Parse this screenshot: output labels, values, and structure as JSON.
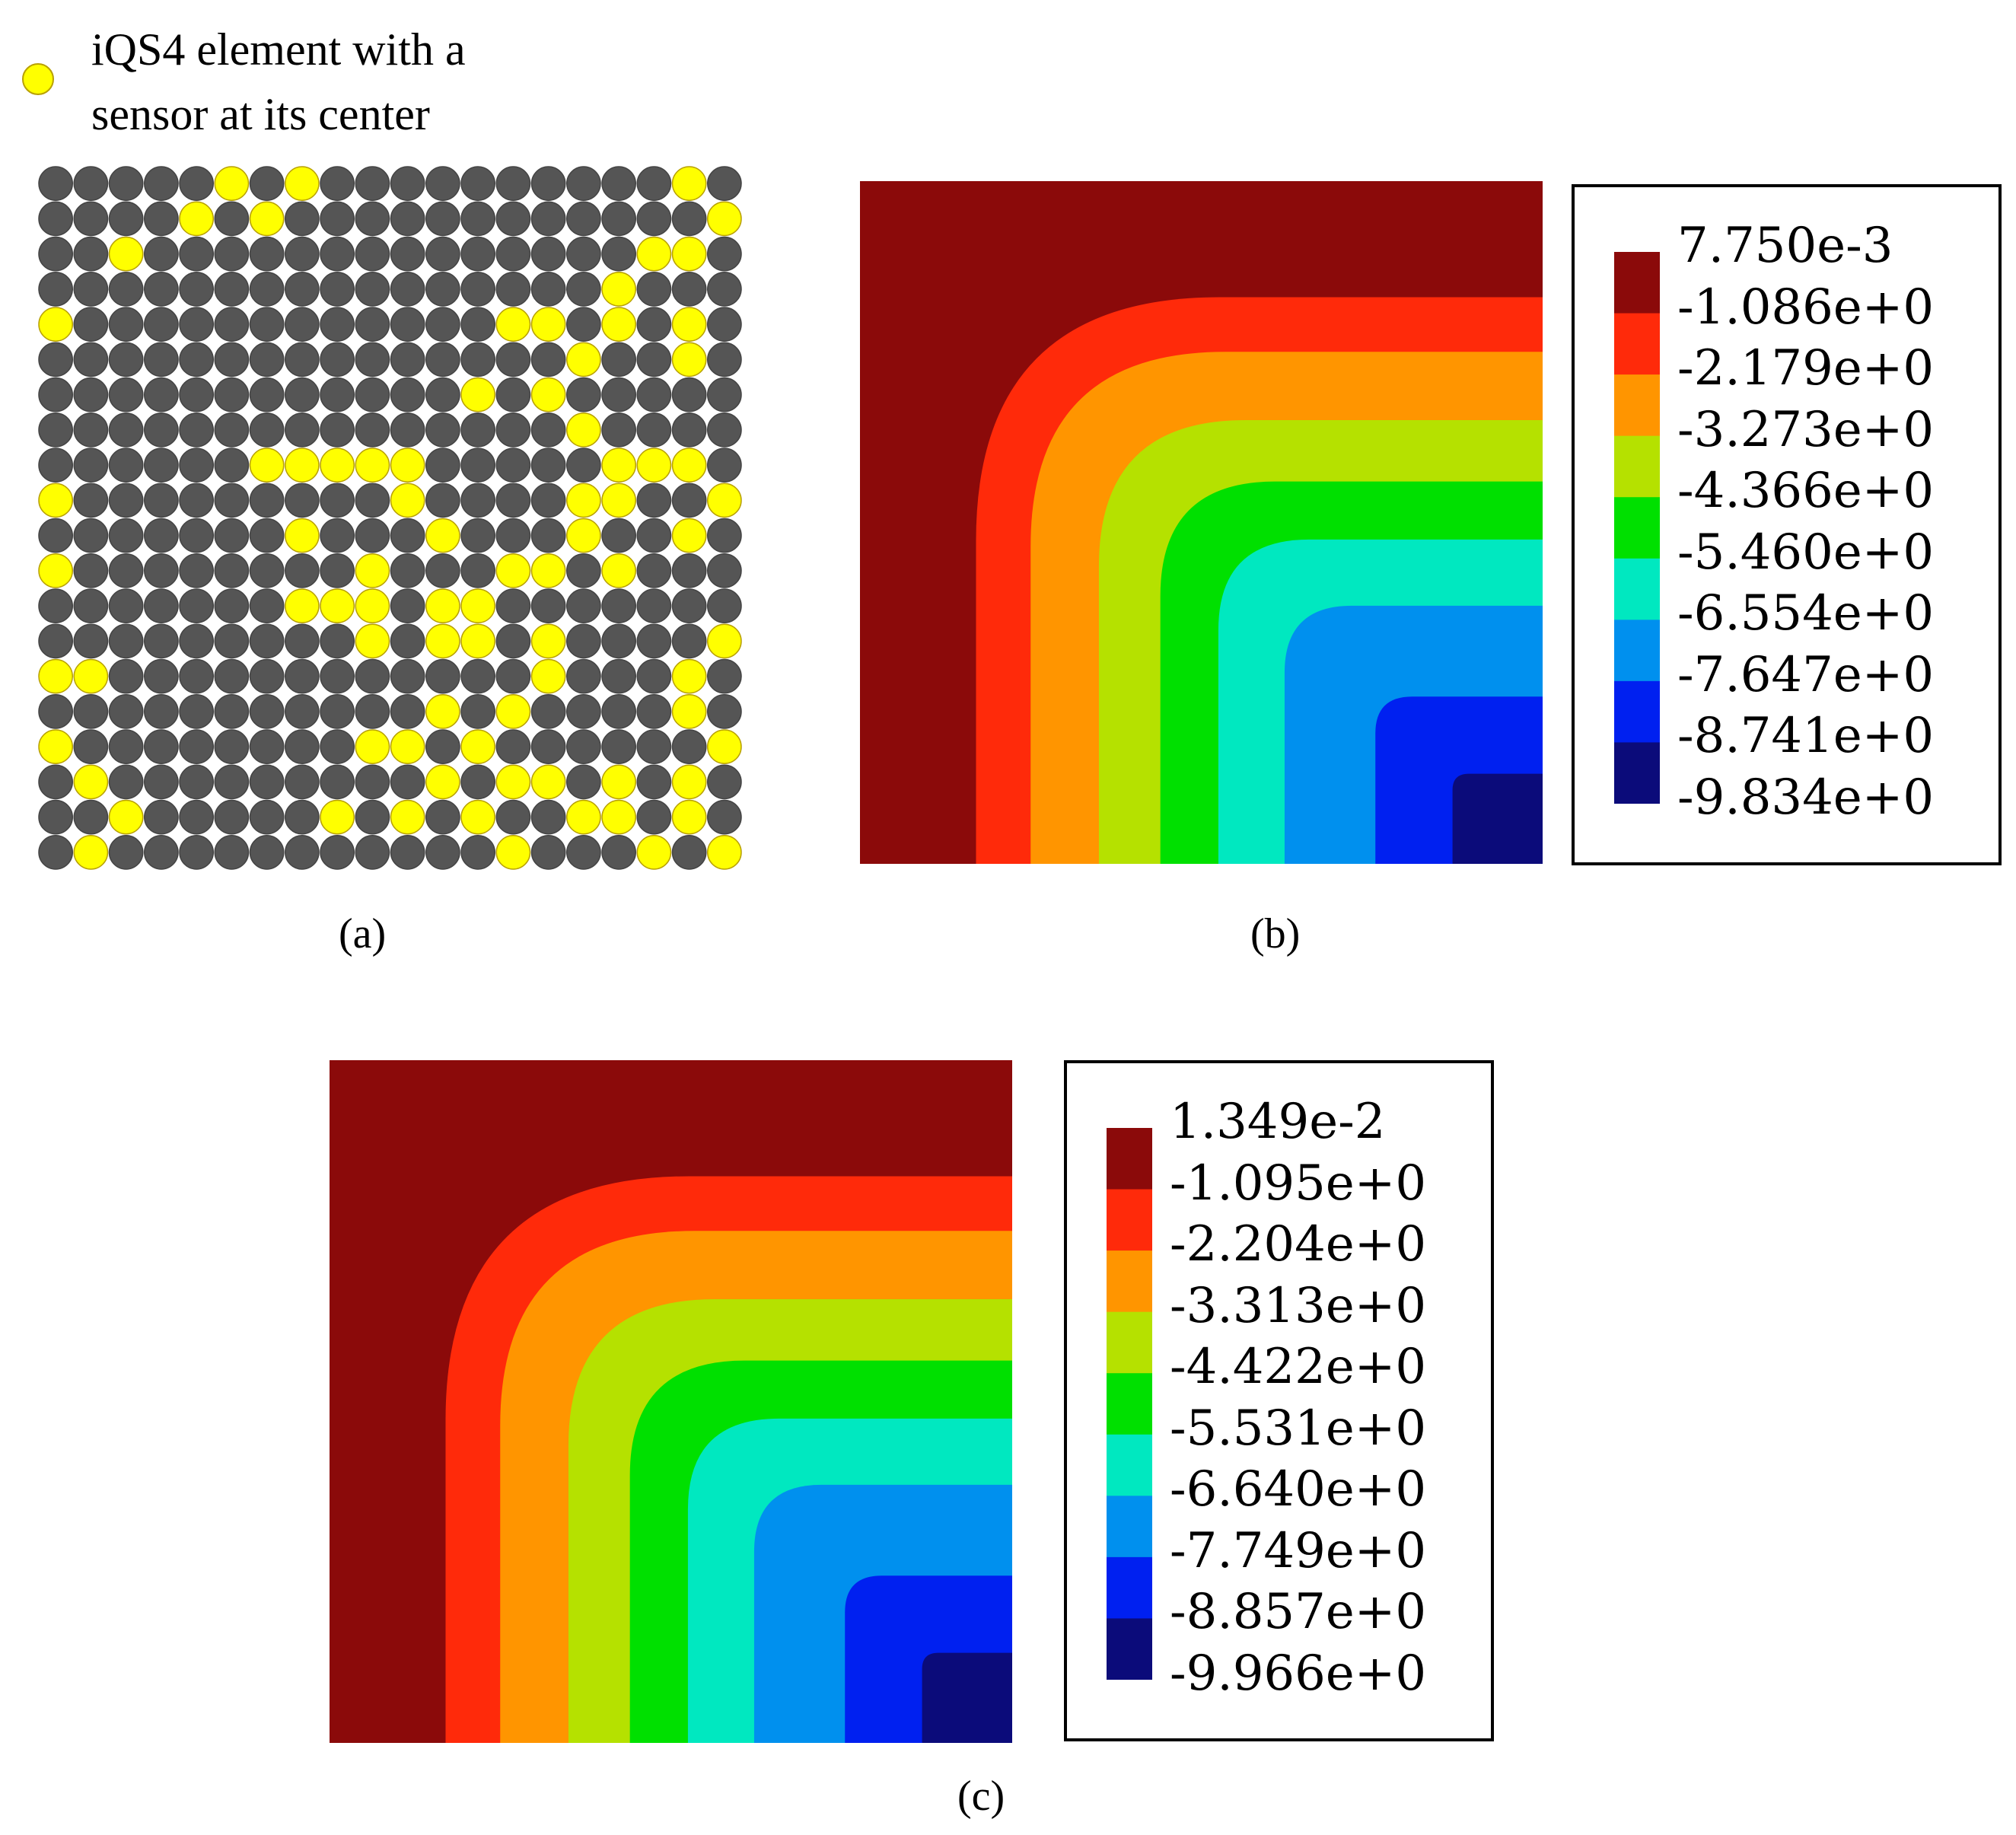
{
  "panel_a": {
    "legend_text_line1": "iQS4 element with a",
    "legend_text_line2": "sensor at its center",
    "legend_marker_color": "#FFFF00",
    "element_color": "#555555",
    "grid": {
      "rows": 20,
      "cols": 20,
      "sensors": [
        [
          0,
          5
        ],
        [
          0,
          7
        ],
        [
          0,
          18
        ],
        [
          1,
          4
        ],
        [
          1,
          6
        ],
        [
          1,
          19
        ],
        [
          2,
          2
        ],
        [
          2,
          17
        ],
        [
          2,
          18
        ],
        [
          3,
          16
        ],
        [
          4,
          0
        ],
        [
          4,
          13
        ],
        [
          4,
          14
        ],
        [
          4,
          16
        ],
        [
          4,
          18
        ],
        [
          5,
          15
        ],
        [
          5,
          18
        ],
        [
          6,
          12
        ],
        [
          6,
          14
        ],
        [
          7,
          15
        ],
        [
          8,
          6
        ],
        [
          8,
          7
        ],
        [
          8,
          8
        ],
        [
          8,
          9
        ],
        [
          8,
          10
        ],
        [
          8,
          16
        ],
        [
          8,
          17
        ],
        [
          8,
          18
        ],
        [
          9,
          0
        ],
        [
          9,
          10
        ],
        [
          9,
          15
        ],
        [
          9,
          16
        ],
        [
          9,
          19
        ],
        [
          10,
          7
        ],
        [
          10,
          11
        ],
        [
          10,
          15
        ],
        [
          10,
          18
        ],
        [
          11,
          0
        ],
        [
          11,
          9
        ],
        [
          11,
          13
        ],
        [
          11,
          14
        ],
        [
          11,
          16
        ],
        [
          12,
          7
        ],
        [
          12,
          8
        ],
        [
          12,
          9
        ],
        [
          12,
          11
        ],
        [
          12,
          12
        ],
        [
          13,
          9
        ],
        [
          13,
          11
        ],
        [
          13,
          12
        ],
        [
          13,
          14
        ],
        [
          13,
          19
        ],
        [
          14,
          0
        ],
        [
          14,
          1
        ],
        [
          14,
          14
        ],
        [
          14,
          18
        ],
        [
          15,
          11
        ],
        [
          15,
          13
        ],
        [
          15,
          18
        ],
        [
          16,
          0
        ],
        [
          16,
          9
        ],
        [
          16,
          10
        ],
        [
          16,
          12
        ],
        [
          16,
          19
        ],
        [
          17,
          1
        ],
        [
          17,
          11
        ],
        [
          17,
          13
        ],
        [
          17,
          14
        ],
        [
          17,
          16
        ],
        [
          17,
          18
        ],
        [
          18,
          2
        ],
        [
          18,
          8
        ],
        [
          18,
          10
        ],
        [
          18,
          12
        ],
        [
          18,
          15
        ],
        [
          18,
          16
        ],
        [
          18,
          18
        ],
        [
          19,
          1
        ],
        [
          19,
          13
        ],
        [
          19,
          17
        ],
        [
          19,
          19
        ]
      ]
    },
    "caption": "(a)"
  },
  "panel_b": {
    "caption": "(b)",
    "colorbar_labels": [
      "7.750e-3",
      "-1.086e+0",
      "-2.179e+0",
      "-3.273e+0",
      "-4.366e+0",
      "-5.460e+0",
      "-6.554e+0",
      "-7.647e+0",
      "-8.741e+0",
      "-9.834e+0"
    ]
  },
  "panel_c": {
    "caption": "(c)",
    "colorbar_labels": [
      "1.349e-2",
      "-1.095e+0",
      "-2.204e+0",
      "-3.313e+0",
      "-4.422e+0",
      "-5.531e+0",
      "-6.640e+0",
      "-7.749e+0",
      "-8.857e+0",
      "-9.966e+0"
    ]
  },
  "colormap": [
    "#8B0A0A",
    "#FF2A0A",
    "#FF9500",
    "#B5E100",
    "#00E000",
    "#00E8C0",
    "#0090EE",
    "#0020F0",
    "#0B0B7A"
  ]
}
